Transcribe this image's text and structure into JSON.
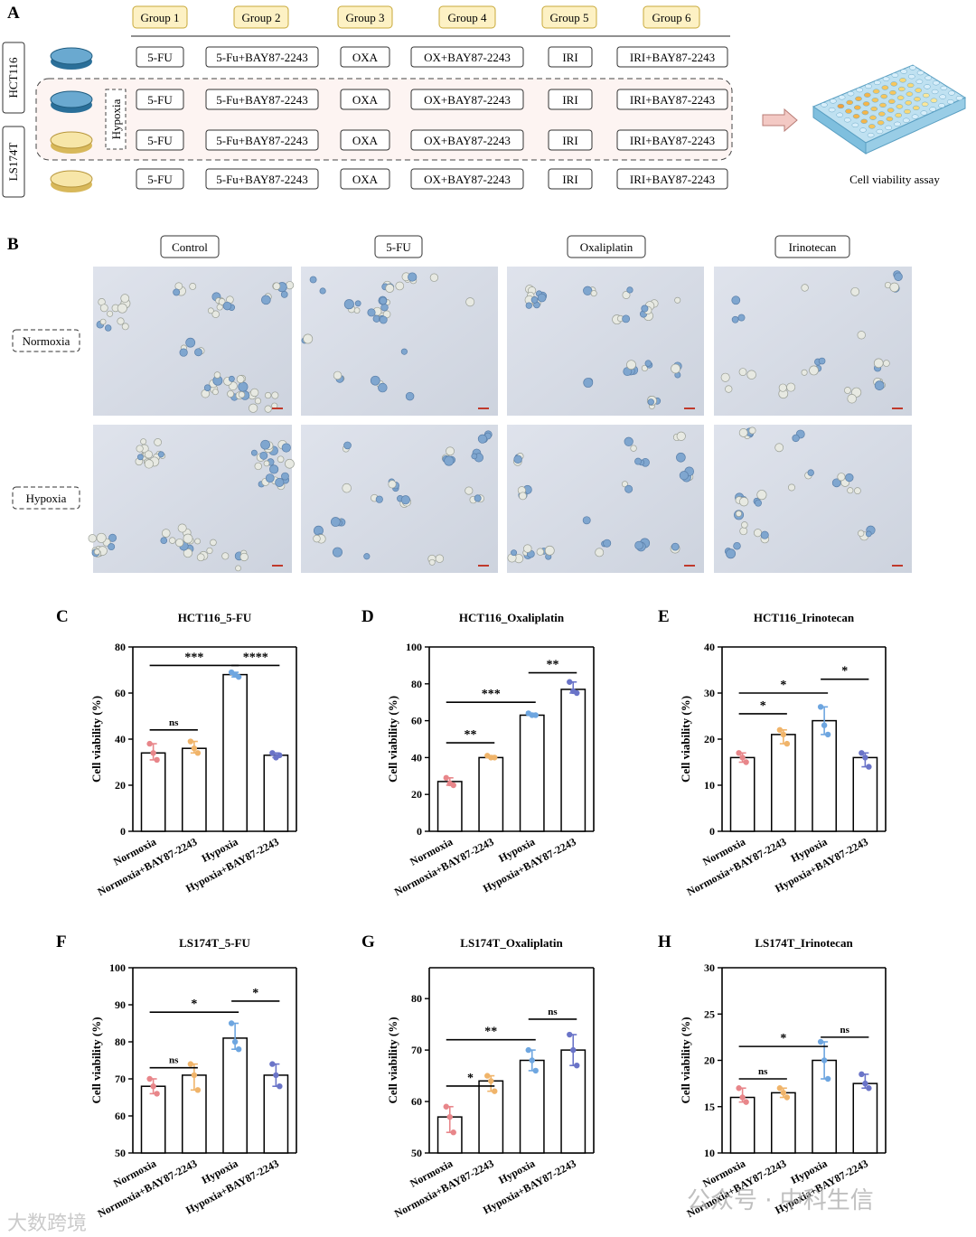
{
  "panel_letters": [
    "A",
    "B",
    "C",
    "D",
    "E",
    "F",
    "G",
    "H"
  ],
  "panelA": {
    "groups": [
      "Group 1",
      "Group 2",
      "Group 3",
      "Group 4",
      "Group 5",
      "Group 6"
    ],
    "treatments": [
      "5-FU",
      "5-Fu+BAY87-2243",
      "OXA",
      "OX+BAY87-2243",
      "IRI",
      "IRI+BAY87-2243"
    ],
    "cell_lines": [
      "HCT116",
      "LS174T"
    ],
    "hypoxia_label": "Hypoxia",
    "assay_label": "Cell viability assay",
    "colors": {
      "group_fill": "#fdf1c4",
      "group_border": "#c8a93a",
      "hypoxia_fill": "#fdf4f2",
      "dish_blue": "#3b86b5",
      "dish_yellow": "#f5dc8a"
    }
  },
  "panelB": {
    "columns": [
      "Control",
      "5-FU",
      "Oxaliplatin",
      "Irinotecan"
    ],
    "rows": [
      "Normoxia",
      "Hypoxia"
    ]
  },
  "chart_categories": [
    "Normoxia",
    "Normoxia+BAY87-2243",
    "Hypoxia",
    "Hypoxia+BAY87-2243"
  ],
  "point_colors": [
    "#e8868a",
    "#f0b46a",
    "#6ea6e0",
    "#6a74c8"
  ],
  "chart_data": [
    {
      "id": "C",
      "type": "bar",
      "title": "HCT116_5-FU",
      "ylabel": "Cell viability (%)",
      "ylim": [
        0,
        80
      ],
      "yticks": [
        0,
        20,
        40,
        60,
        80
      ],
      "values": [
        34,
        36,
        68,
        33
      ],
      "points": [
        [
          38,
          34,
          31
        ],
        [
          39,
          36,
          34
        ],
        [
          69,
          68,
          67
        ],
        [
          34,
          32,
          33
        ]
      ],
      "sig": [
        {
          "a": 0,
          "b": 1,
          "label": "ns",
          "y": 44
        },
        {
          "a": 0,
          "b": 2,
          "label": "***",
          "y": 72
        },
        {
          "a": 2,
          "b": 3,
          "label": "****",
          "y": 72
        }
      ]
    },
    {
      "id": "D",
      "type": "bar",
      "title": "HCT116_Oxaliplatin",
      "ylabel": "Cell viability (%)",
      "ylim": [
        0,
        100
      ],
      "yticks": [
        0,
        20,
        40,
        60,
        80,
        100
      ],
      "values": [
        27,
        40,
        63,
        77
      ],
      "points": [
        [
          29,
          26,
          25
        ],
        [
          41,
          40,
          40
        ],
        [
          64,
          63,
          63
        ],
        [
          81,
          76,
          75
        ]
      ],
      "sig": [
        {
          "a": 0,
          "b": 1,
          "label": "**",
          "y": 48
        },
        {
          "a": 0,
          "b": 2,
          "label": "***",
          "y": 70
        },
        {
          "a": 2,
          "b": 3,
          "label": "**",
          "y": 86
        }
      ]
    },
    {
      "id": "E",
      "type": "bar",
      "title": "HCT116_Irinotecan",
      "ylabel": "Cell viability (%)",
      "ylim": [
        0,
        40
      ],
      "yticks": [
        0,
        10,
        20,
        30,
        40
      ],
      "values": [
        16,
        21,
        24,
        16
      ],
      "points": [
        [
          17,
          16,
          15
        ],
        [
          22,
          21,
          19
        ],
        [
          27,
          23,
          21
        ],
        [
          17,
          16,
          14
        ]
      ],
      "sig": [
        {
          "a": 0,
          "b": 1,
          "label": "*",
          "y": 25.5
        },
        {
          "a": 0,
          "b": 2,
          "label": "*",
          "y": 30
        },
        {
          "a": 2,
          "b": 3,
          "label": "*",
          "y": 33
        }
      ]
    },
    {
      "id": "F",
      "type": "bar",
      "title": "LS174T_5-FU",
      "ylabel": "Cell viability (%)",
      "ylim": [
        50,
        100
      ],
      "yticks": [
        50,
        60,
        70,
        80,
        90,
        100
      ],
      "values": [
        68,
        71,
        81,
        71
      ],
      "points": [
        [
          70,
          68,
          66
        ],
        [
          74,
          71,
          67
        ],
        [
          85,
          80,
          78
        ],
        [
          74,
          71,
          68
        ]
      ],
      "sig": [
        {
          "a": 0,
          "b": 1,
          "label": "ns",
          "y": 73
        },
        {
          "a": 0,
          "b": 2,
          "label": "*",
          "y": 88
        },
        {
          "a": 2,
          "b": 3,
          "label": "*",
          "y": 91
        }
      ]
    },
    {
      "id": "G",
      "type": "bar",
      "title": "LS174T_Oxaliplatin",
      "ylabel": "Cell viability (%)",
      "ylim": [
        50,
        86
      ],
      "yticks": [
        50,
        60,
        70,
        80
      ],
      "values": [
        57,
        64,
        68,
        70
      ],
      "points": [
        [
          59,
          57,
          54
        ],
        [
          65,
          64,
          62
        ],
        [
          70,
          68,
          66
        ],
        [
          73,
          70,
          67
        ]
      ],
      "sig": [
        {
          "a": 0,
          "b": 1,
          "label": "*",
          "y": 63
        },
        {
          "a": 0,
          "b": 2,
          "label": "**",
          "y": 72
        },
        {
          "a": 2,
          "b": 3,
          "label": "ns",
          "y": 76
        }
      ]
    },
    {
      "id": "H",
      "type": "bar",
      "title": "LS174T_Irinotecan",
      "ylabel": "Cell viability (%)",
      "ylim": [
        10,
        30
      ],
      "yticks": [
        10,
        15,
        20,
        25,
        30
      ],
      "values": [
        16,
        16.5,
        20,
        17.5
      ],
      "points": [
        [
          17,
          16,
          15.5
        ],
        [
          17,
          16.5,
          16
        ],
        [
          22,
          20,
          18
        ],
        [
          18.5,
          17.5,
          17
        ]
      ],
      "sig": [
        {
          "a": 0,
          "b": 1,
          "label": "ns",
          "y": 18
        },
        {
          "a": 0,
          "b": 2,
          "label": "*",
          "y": 21.5
        },
        {
          "a": 2,
          "b": 3,
          "label": "ns",
          "y": 22.5
        }
      ]
    }
  ],
  "watermarks": [
    "大数跨境",
    "公众号 · 中科生信"
  ]
}
